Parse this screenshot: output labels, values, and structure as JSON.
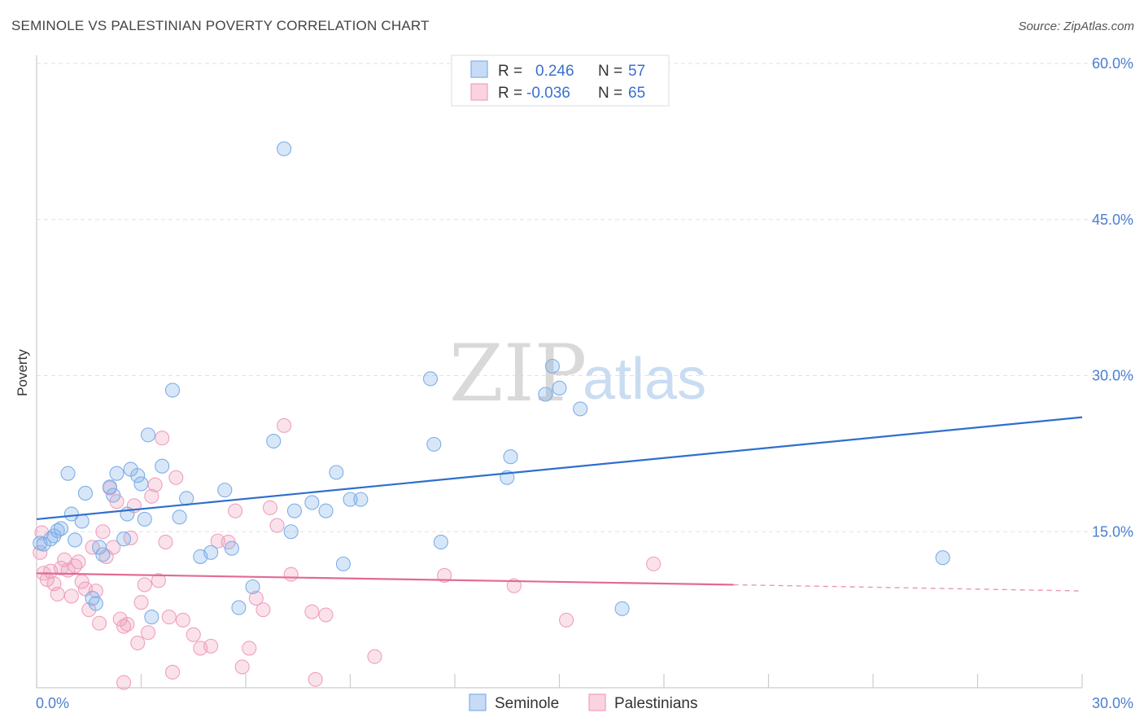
{
  "header": {
    "title": "SEMINOLE VS PALESTINIAN POVERTY CORRELATION CHART",
    "source": "Source: ZipAtlas.com"
  },
  "watermark": {
    "zip": "ZIP",
    "atlas": "atlas"
  },
  "legend_top": {
    "rows": [
      {
        "r_label": "R =",
        "r_value": "0.246",
        "n_label": "N =",
        "n_value": "57",
        "color": "#7eaee8"
      },
      {
        "r_label": "R =",
        "r_value": "-0.036",
        "n_label": "N =",
        "n_value": "65",
        "color": "#f0a0bc"
      }
    ]
  },
  "legend_bottom": [
    {
      "label": "Seminole",
      "color": "#7eaee8"
    },
    {
      "label": "Palestinians",
      "color": "#f0a0bc"
    }
  ],
  "chart_data": {
    "type": "scatter",
    "title": "SEMINOLE VS PALESTINIAN POVERTY CORRELATION CHART",
    "xlabel": "",
    "ylabel": "Poverty",
    "xlim": [
      0,
      30
    ],
    "ylim": [
      0,
      60
    ],
    "x_tick_labels": [
      "0.0%",
      "30.0%"
    ],
    "y_ticks": [
      15,
      30,
      45,
      60
    ],
    "y_tick_labels": [
      "15.0%",
      "30.0%",
      "45.0%",
      "60.0%"
    ],
    "grid": true,
    "legend_position": "top-center",
    "series": [
      {
        "name": "Seminole",
        "color": "#7eaee8",
        "line_color": "#2f6fcc",
        "trend": {
          "x": [
            0,
            30
          ],
          "y": [
            16.2,
            26.0
          ]
        },
        "points": [
          [
            0.2,
            13.8
          ],
          [
            0.4,
            14.3
          ],
          [
            0.5,
            14.6
          ],
          [
            0.6,
            15.1
          ],
          [
            0.7,
            15.3
          ],
          [
            0.9,
            20.6
          ],
          [
            1.0,
            16.7
          ],
          [
            1.1,
            14.2
          ],
          [
            1.3,
            16.0
          ],
          [
            1.4,
            18.7
          ],
          [
            1.6,
            8.6
          ],
          [
            1.7,
            8.1
          ],
          [
            1.8,
            13.5
          ],
          [
            1.9,
            12.8
          ],
          [
            2.1,
            19.3
          ],
          [
            2.2,
            18.5
          ],
          [
            2.3,
            20.6
          ],
          [
            2.5,
            14.3
          ],
          [
            2.6,
            16.7
          ],
          [
            2.7,
            21.0
          ],
          [
            2.9,
            20.4
          ],
          [
            3.0,
            19.6
          ],
          [
            3.1,
            16.2
          ],
          [
            3.2,
            24.3
          ],
          [
            3.3,
            6.8
          ],
          [
            3.6,
            21.3
          ],
          [
            3.9,
            28.6
          ],
          [
            4.1,
            16.4
          ],
          [
            4.3,
            18.2
          ],
          [
            4.7,
            12.6
          ],
          [
            5.0,
            13.0
          ],
          [
            5.4,
            19.0
          ],
          [
            5.6,
            13.4
          ],
          [
            5.8,
            7.7
          ],
          [
            6.2,
            9.7
          ],
          [
            6.8,
            23.7
          ],
          [
            7.1,
            51.8
          ],
          [
            7.3,
            15.0
          ],
          [
            7.4,
            17.0
          ],
          [
            7.9,
            17.8
          ],
          [
            8.3,
            17.0
          ],
          [
            8.6,
            20.7
          ],
          [
            8.8,
            11.9
          ],
          [
            9.0,
            18.1
          ],
          [
            9.3,
            18.1
          ],
          [
            11.3,
            29.7
          ],
          [
            11.4,
            23.4
          ],
          [
            11.6,
            14.0
          ],
          [
            13.5,
            20.2
          ],
          [
            13.6,
            22.2
          ],
          [
            14.6,
            28.2
          ],
          [
            14.8,
            30.9
          ],
          [
            15.0,
            28.8
          ],
          [
            15.6,
            26.8
          ],
          [
            16.8,
            7.6
          ],
          [
            26.0,
            12.5
          ],
          [
            0.1,
            13.9
          ]
        ]
      },
      {
        "name": "Palestinians",
        "color": "#f0a0bc",
        "line_color": "#e26a93",
        "trend": {
          "x": [
            0,
            20
          ],
          "y": [
            11.0,
            9.9
          ]
        },
        "trend_dashed": {
          "x": [
            20,
            30
          ],
          "y": [
            9.9,
            9.3
          ]
        },
        "points": [
          [
            0.1,
            13.0
          ],
          [
            0.2,
            11.0
          ],
          [
            0.3,
            10.4
          ],
          [
            0.4,
            11.2
          ],
          [
            0.5,
            10.0
          ],
          [
            0.6,
            9.0
          ],
          [
            0.7,
            11.5
          ],
          [
            0.8,
            12.3
          ],
          [
            0.9,
            11.3
          ],
          [
            1.0,
            8.8
          ],
          [
            1.1,
            11.7
          ],
          [
            1.2,
            12.1
          ],
          [
            1.3,
            10.2
          ],
          [
            1.4,
            9.5
          ],
          [
            1.5,
            7.5
          ],
          [
            1.6,
            13.5
          ],
          [
            1.7,
            9.3
          ],
          [
            1.8,
            6.2
          ],
          [
            1.9,
            15.0
          ],
          [
            2.0,
            12.6
          ],
          [
            2.1,
            19.2
          ],
          [
            2.2,
            13.5
          ],
          [
            2.3,
            17.9
          ],
          [
            2.4,
            6.6
          ],
          [
            2.5,
            5.9
          ],
          [
            2.6,
            6.1
          ],
          [
            2.7,
            14.4
          ],
          [
            2.8,
            17.5
          ],
          [
            2.9,
            4.3
          ],
          [
            3.0,
            8.2
          ],
          [
            3.1,
            9.9
          ],
          [
            3.2,
            5.3
          ],
          [
            3.3,
            18.4
          ],
          [
            3.4,
            19.5
          ],
          [
            3.5,
            10.3
          ],
          [
            3.6,
            24.0
          ],
          [
            3.7,
            14.0
          ],
          [
            3.8,
            6.8
          ],
          [
            3.9,
            1.5
          ],
          [
            4.0,
            20.2
          ],
          [
            4.2,
            6.5
          ],
          [
            4.5,
            5.1
          ],
          [
            4.7,
            3.8
          ],
          [
            5.0,
            4.0
          ],
          [
            5.2,
            14.1
          ],
          [
            5.5,
            14.0
          ],
          [
            5.7,
            17.0
          ],
          [
            5.9,
            2.0
          ],
          [
            6.1,
            3.8
          ],
          [
            6.3,
            8.6
          ],
          [
            6.5,
            7.5
          ],
          [
            6.7,
            17.3
          ],
          [
            6.9,
            15.6
          ],
          [
            7.1,
            25.2
          ],
          [
            7.3,
            10.9
          ],
          [
            7.9,
            7.3
          ],
          [
            8.0,
            0.8
          ],
          [
            8.3,
            7.0
          ],
          [
            9.7,
            3.0
          ],
          [
            11.7,
            10.8
          ],
          [
            13.7,
            9.8
          ],
          [
            15.2,
            6.5
          ],
          [
            17.7,
            11.9
          ],
          [
            0.15,
            14.9
          ],
          [
            2.5,
            0.5
          ]
        ]
      }
    ]
  }
}
